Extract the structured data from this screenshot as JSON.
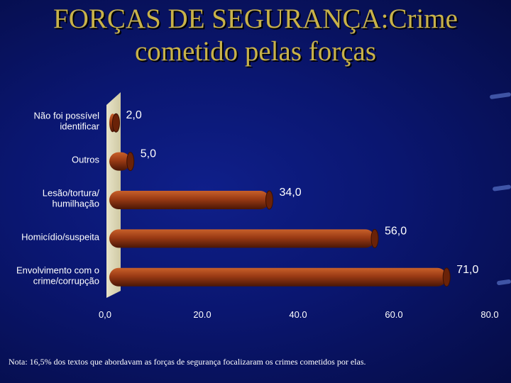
{
  "title_line1": "FORÇAS DE SEGURANÇA:Crime",
  "title_line2": "cometido pelas forças",
  "chart_data": {
    "type": "bar",
    "orientation": "horizontal",
    "categories": [
      [
        "Não foi possível",
        "identificar"
      ],
      [
        "Outros"
      ],
      [
        "Lesão/tortura/",
        "humilhação"
      ],
      [
        "Homicídio/suspeita"
      ],
      [
        "Envolvimento com o",
        "crime/corrupção"
      ]
    ],
    "values": [
      2.0,
      5.0,
      34.0,
      56.0,
      71.0
    ],
    "value_labels": [
      "2,0",
      "5,0",
      "34,0",
      "56,0",
      "71,0"
    ],
    "xlim": [
      0,
      80
    ],
    "xticks": [
      0,
      20,
      40,
      60,
      80
    ],
    "xtick_labels": [
      "0,0",
      "20.0",
      "40.0",
      "60.0",
      "80.0"
    ],
    "bar_color": "#9a3a14",
    "grid": false
  },
  "note": "Nota: 16,5% dos textos que abordavam as forças de segurança focalizaram os crimes cometidos por elas."
}
